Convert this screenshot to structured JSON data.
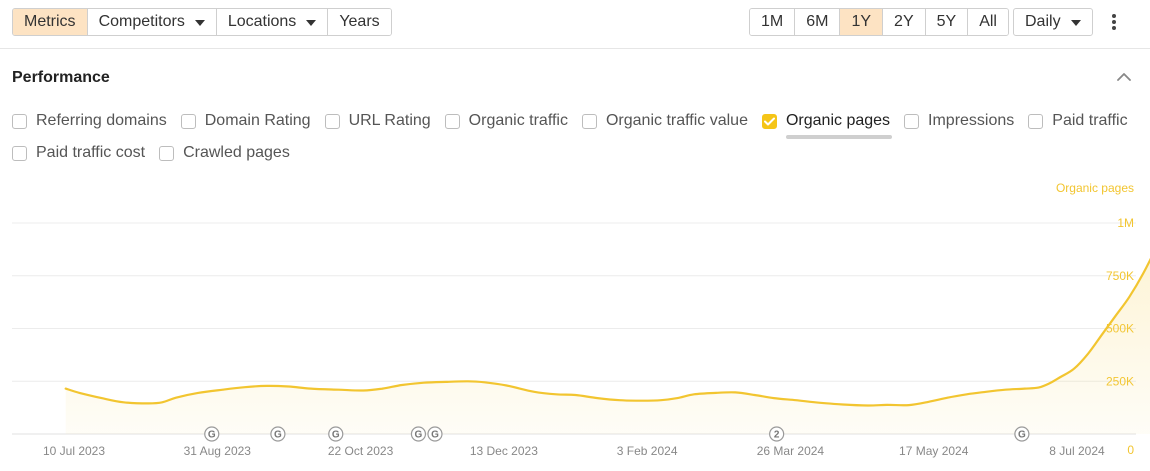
{
  "toolbar": {
    "tabs": [
      {
        "label": "Metrics",
        "active": true,
        "dropdown": false
      },
      {
        "label": "Competitors",
        "active": false,
        "dropdown": true
      },
      {
        "label": "Locations",
        "active": false,
        "dropdown": true
      },
      {
        "label": "Years",
        "active": false,
        "dropdown": false
      }
    ],
    "ranges": [
      {
        "label": "1M",
        "active": false
      },
      {
        "label": "6M",
        "active": false
      },
      {
        "label": "1Y",
        "active": true
      },
      {
        "label": "2Y",
        "active": false
      },
      {
        "label": "5Y",
        "active": false
      },
      {
        "label": "All",
        "active": false
      }
    ],
    "interval": "Daily",
    "accent": "#fde3c3"
  },
  "performance": {
    "title": "Performance",
    "metrics_row1": [
      {
        "label": "Referring domains",
        "checked": false
      },
      {
        "label": "Domain Rating",
        "checked": false
      },
      {
        "label": "URL Rating",
        "checked": false
      },
      {
        "label": "Organic traffic",
        "checked": false
      },
      {
        "label": "Organic traffic value",
        "checked": false
      },
      {
        "label": "Organic pages",
        "checked": true
      },
      {
        "label": "Impressions",
        "checked": false
      },
      {
        "label": "Paid traffic",
        "checked": false
      }
    ],
    "metrics_row2": [
      {
        "label": "Paid traffic cost",
        "checked": false
      },
      {
        "label": "Crawled pages",
        "checked": false
      }
    ]
  },
  "chart_data": {
    "type": "area",
    "series": [
      {
        "name": "Organic pages",
        "color": "#f2c530",
        "points": [
          [
            "2023-07-07",
            215000
          ],
          [
            "2023-07-12",
            195000
          ],
          [
            "2023-07-20",
            170000
          ],
          [
            "2023-07-28",
            150000
          ],
          [
            "2023-08-06",
            145000
          ],
          [
            "2023-08-11",
            150000
          ],
          [
            "2023-08-16",
            172000
          ],
          [
            "2023-08-24",
            195000
          ],
          [
            "2023-09-02",
            210000
          ],
          [
            "2023-09-10",
            222000
          ],
          [
            "2023-09-18",
            228000
          ],
          [
            "2023-09-26",
            225000
          ],
          [
            "2023-10-04",
            215000
          ],
          [
            "2023-10-14",
            210000
          ],
          [
            "2023-10-23",
            206000
          ],
          [
            "2023-10-30",
            215000
          ],
          [
            "2023-11-06",
            232000
          ],
          [
            "2023-11-14",
            243000
          ],
          [
            "2023-11-22",
            247000
          ],
          [
            "2023-11-30",
            250000
          ],
          [
            "2023-12-06",
            245000
          ],
          [
            "2023-12-14",
            230000
          ],
          [
            "2023-12-24",
            200000
          ],
          [
            "2024-01-01",
            188000
          ],
          [
            "2024-01-08",
            185000
          ],
          [
            "2024-01-16",
            170000
          ],
          [
            "2024-01-24",
            160000
          ],
          [
            "2024-02-01",
            158000
          ],
          [
            "2024-02-08",
            160000
          ],
          [
            "2024-02-14",
            170000
          ],
          [
            "2024-02-20",
            188000
          ],
          [
            "2024-02-28",
            195000
          ],
          [
            "2024-03-06",
            197000
          ],
          [
            "2024-03-13",
            185000
          ],
          [
            "2024-03-20",
            170000
          ],
          [
            "2024-03-28",
            160000
          ],
          [
            "2024-04-04",
            150000
          ],
          [
            "2024-04-14",
            140000
          ],
          [
            "2024-04-23",
            135000
          ],
          [
            "2024-04-30",
            138000
          ],
          [
            "2024-05-08",
            137000
          ],
          [
            "2024-05-15",
            152000
          ],
          [
            "2024-05-22",
            172000
          ],
          [
            "2024-05-29",
            188000
          ],
          [
            "2024-06-05",
            200000
          ],
          [
            "2024-06-12",
            210000
          ],
          [
            "2024-06-19",
            215000
          ],
          [
            "2024-06-24",
            220000
          ],
          [
            "2024-06-28",
            240000
          ],
          [
            "2024-07-02",
            270000
          ],
          [
            "2024-07-07",
            310000
          ],
          [
            "2024-07-12",
            380000
          ],
          [
            "2024-07-17",
            470000
          ],
          [
            "2024-07-22",
            560000
          ],
          [
            "2024-07-27",
            650000
          ],
          [
            "2024-08-01",
            760000
          ],
          [
            "2024-08-06",
            890000
          ],
          [
            "2024-08-10",
            1000000
          ]
        ]
      }
    ],
    "series_label": "Organic pages",
    "x_ticks": [
      "10 Jul 2023",
      "31 Aug 2023",
      "22 Oct 2023",
      "13 Dec 2023",
      "3 Feb 2024",
      "26 Mar 2024",
      "17 May 2024",
      "8 Jul 2024"
    ],
    "y_ticks": [
      "0",
      "250K",
      "500K",
      "750K",
      "1M"
    ],
    "ylim": [
      0,
      1000000
    ],
    "grid": true,
    "annotations": [
      {
        "label": "G",
        "date": "2023-08-29"
      },
      {
        "label": "G",
        "date": "2023-09-22"
      },
      {
        "label": "G",
        "date": "2023-10-13"
      },
      {
        "label": "G",
        "date": "2023-11-12"
      },
      {
        "label": "G",
        "date": "2023-11-18"
      },
      {
        "label": "2",
        "date": "2024-03-21"
      },
      {
        "label": "G",
        "date": "2024-06-18"
      }
    ]
  }
}
